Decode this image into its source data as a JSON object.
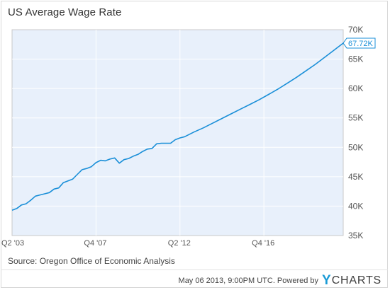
{
  "chart_data": {
    "type": "line",
    "title": "US Average Wage Rate",
    "source": "Source: Oregon Office of Economic Analysis",
    "y_ticks": [
      {
        "value": 35000,
        "label": "35K"
      },
      {
        "value": 40000,
        "label": "40K"
      },
      {
        "value": 45000,
        "label": "45K"
      },
      {
        "value": 50000,
        "label": "50K"
      },
      {
        "value": 55000,
        "label": "55K"
      },
      {
        "value": 60000,
        "label": "60K"
      },
      {
        "value": 65000,
        "label": "65K"
      },
      {
        "value": 70000,
        "label": "70K"
      }
    ],
    "ylim": [
      35000,
      70000
    ],
    "xlim": [
      2003.25,
      2021.0
    ],
    "x_ticks": [
      {
        "value": 2003.25,
        "label": "Q2  '03"
      },
      {
        "value": 2007.75,
        "label": "Q4  '07"
      },
      {
        "value": 2012.25,
        "label": "Q2  '12"
      },
      {
        "value": 2016.75,
        "label": "Q4  '16"
      }
    ],
    "grid": "horizontal and vertical",
    "series": [
      {
        "color": "#1a8fd8",
        "last_value_label": "67.72K",
        "points": [
          [
            2003.25,
            39300
          ],
          [
            2003.5,
            39600
          ],
          [
            2003.75,
            40200
          ],
          [
            2004.0,
            40400
          ],
          [
            2004.25,
            41000
          ],
          [
            2004.5,
            41700
          ],
          [
            2004.75,
            41900
          ],
          [
            2005.0,
            42100
          ],
          [
            2005.25,
            42300
          ],
          [
            2005.5,
            42900
          ],
          [
            2005.75,
            43100
          ],
          [
            2006.0,
            44000
          ],
          [
            2006.25,
            44300
          ],
          [
            2006.5,
            44600
          ],
          [
            2006.75,
            45400
          ],
          [
            2007.0,
            46200
          ],
          [
            2007.25,
            46400
          ],
          [
            2007.5,
            46700
          ],
          [
            2007.75,
            47400
          ],
          [
            2008.0,
            47800
          ],
          [
            2008.25,
            47700
          ],
          [
            2008.5,
            48000
          ],
          [
            2008.75,
            48200
          ],
          [
            2009.0,
            47300
          ],
          [
            2009.25,
            47900
          ],
          [
            2009.5,
            48100
          ],
          [
            2009.75,
            48500
          ],
          [
            2010.0,
            48800
          ],
          [
            2010.25,
            49300
          ],
          [
            2010.5,
            49700
          ],
          [
            2010.75,
            49800
          ],
          [
            2011.0,
            50600
          ],
          [
            2011.25,
            50700
          ],
          [
            2011.5,
            50700
          ],
          [
            2011.75,
            50700
          ],
          [
            2012.0,
            51300
          ],
          [
            2012.25,
            51600
          ],
          [
            2012.5,
            51800
          ],
          [
            2013.0,
            52600
          ],
          [
            2013.5,
            53300
          ],
          [
            2014.0,
            54100
          ],
          [
            2014.5,
            54900
          ],
          [
            2015.0,
            55700
          ],
          [
            2015.5,
            56500
          ],
          [
            2016.0,
            57300
          ],
          [
            2016.5,
            58100
          ],
          [
            2017.0,
            59000
          ],
          [
            2017.5,
            59900
          ],
          [
            2018.0,
            60900
          ],
          [
            2018.5,
            61900
          ],
          [
            2019.0,
            63000
          ],
          [
            2019.5,
            64100
          ],
          [
            2020.0,
            65300
          ],
          [
            2020.5,
            66500
          ],
          [
            2021.0,
            67720
          ]
        ]
      }
    ]
  },
  "footer": {
    "timestamp": "May 06 2013, 9:00PM UTC.  Powered by",
    "brand_y": "Y",
    "brand_rest": "CHARTS"
  }
}
